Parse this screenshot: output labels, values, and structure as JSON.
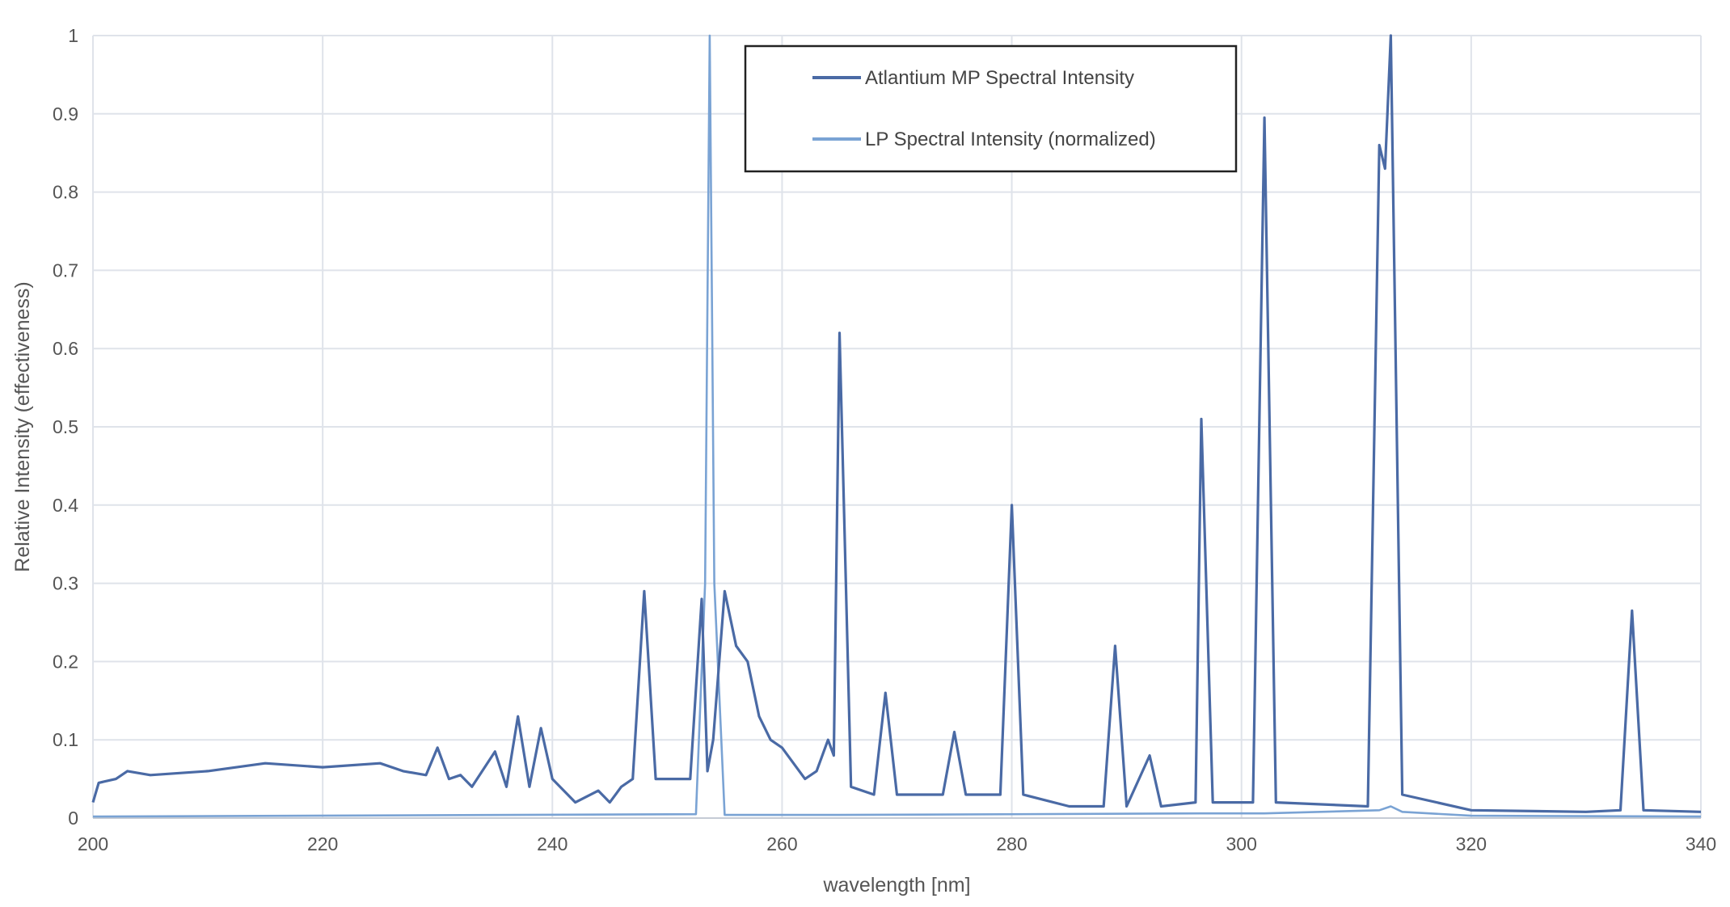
{
  "chart_data": {
    "type": "line",
    "title": "",
    "xlabel": "wavelength [nm]",
    "ylabel": "Relative Intensity (effectiveness)",
    "xlim": [
      200,
      340
    ],
    "ylim": [
      0,
      1
    ],
    "x_ticks": [
      "200",
      "220",
      "240",
      "260",
      "280",
      "300",
      "320",
      "340"
    ],
    "y_ticks": [
      "0",
      "0.1",
      "0.2",
      "0.3",
      "0.4",
      "0.5",
      "0.6",
      "0.7",
      "0.8",
      "0.9",
      "1"
    ],
    "grid": true,
    "legend_position": "top-center",
    "series": [
      {
        "name": "Atlantium MP Spectral Intensity",
        "color": "#4a6aa5",
        "points": [
          [
            200,
            0.02
          ],
          [
            200.5,
            0.045
          ],
          [
            202,
            0.05
          ],
          [
            203,
            0.06
          ],
          [
            205,
            0.055
          ],
          [
            210,
            0.06
          ],
          [
            215,
            0.07
          ],
          [
            220,
            0.065
          ],
          [
            225,
            0.07
          ],
          [
            227,
            0.06
          ],
          [
            229,
            0.055
          ],
          [
            230,
            0.09
          ],
          [
            231,
            0.05
          ],
          [
            232,
            0.055
          ],
          [
            233,
            0.04
          ],
          [
            235,
            0.085
          ],
          [
            236,
            0.04
          ],
          [
            237,
            0.13
          ],
          [
            238,
            0.04
          ],
          [
            239,
            0.115
          ],
          [
            240,
            0.05
          ],
          [
            242,
            0.02
          ],
          [
            244,
            0.035
          ],
          [
            245,
            0.02
          ],
          [
            246,
            0.04
          ],
          [
            247,
            0.05
          ],
          [
            248,
            0.29
          ],
          [
            249,
            0.05
          ],
          [
            252,
            0.05
          ],
          [
            253,
            0.28
          ],
          [
            253.5,
            0.06
          ],
          [
            254,
            0.1
          ],
          [
            255,
            0.29
          ],
          [
            256,
            0.22
          ],
          [
            257,
            0.2
          ],
          [
            258,
            0.13
          ],
          [
            259,
            0.1
          ],
          [
            260,
            0.09
          ],
          [
            262,
            0.05
          ],
          [
            263,
            0.06
          ],
          [
            264,
            0.1
          ],
          [
            264.5,
            0.08
          ],
          [
            265,
            0.62
          ],
          [
            266,
            0.04
          ],
          [
            268,
            0.03
          ],
          [
            269,
            0.16
          ],
          [
            270,
            0.03
          ],
          [
            274,
            0.03
          ],
          [
            275,
            0.11
          ],
          [
            276,
            0.03
          ],
          [
            279,
            0.03
          ],
          [
            280,
            0.4
          ],
          [
            281,
            0.03
          ],
          [
            285,
            0.015
          ],
          [
            288,
            0.015
          ],
          [
            289,
            0.22
          ],
          [
            290,
            0.015
          ],
          [
            292,
            0.08
          ],
          [
            293,
            0.015
          ],
          [
            296,
            0.02
          ],
          [
            296.5,
            0.51
          ],
          [
            297.5,
            0.02
          ],
          [
            301,
            0.02
          ],
          [
            302,
            0.895
          ],
          [
            303,
            0.02
          ],
          [
            311,
            0.015
          ],
          [
            312,
            0.86
          ],
          [
            312.5,
            0.83
          ],
          [
            313,
            1.0
          ],
          [
            314,
            0.03
          ],
          [
            320,
            0.01
          ],
          [
            330,
            0.008
          ],
          [
            333,
            0.01
          ],
          [
            334,
            0.265
          ],
          [
            335,
            0.01
          ],
          [
            340,
            0.008
          ]
        ]
      },
      {
        "name": "LP Spectral Intensity (normalized)",
        "color": "#7aa3d4",
        "points": [
          [
            200,
            0.002
          ],
          [
            252.5,
            0.005
          ],
          [
            253.3,
            0.3
          ],
          [
            253.7,
            1.0
          ],
          [
            254.1,
            0.3
          ],
          [
            255,
            0.004
          ],
          [
            265,
            0.004
          ],
          [
            296.5,
            0.006
          ],
          [
            302,
            0.006
          ],
          [
            312,
            0.01
          ],
          [
            313,
            0.015
          ],
          [
            314,
            0.008
          ],
          [
            320,
            0.003
          ],
          [
            340,
            0.002
          ]
        ]
      }
    ]
  }
}
